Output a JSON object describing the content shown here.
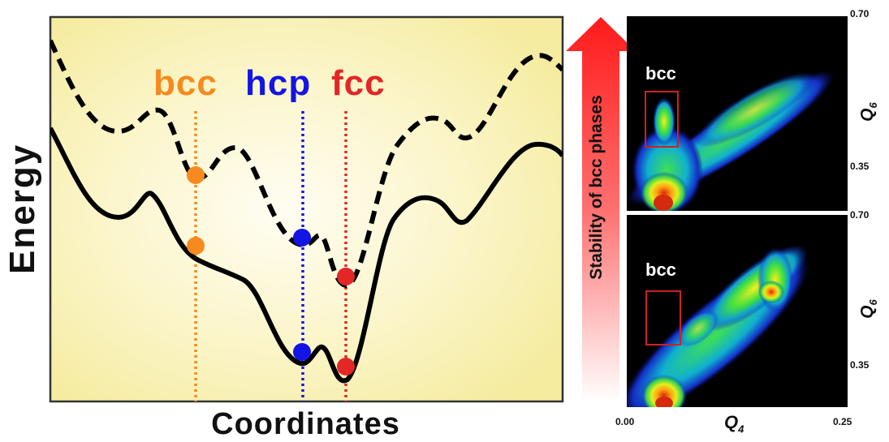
{
  "energy_diagram": {
    "y_label": "Energy",
    "x_label": "Coordinates",
    "phases": [
      {
        "label": "bcc",
        "color": "#f7891e"
      },
      {
        "label": "hcp",
        "color": "#1414e6"
      },
      {
        "label": "fcc",
        "color": "#e32626"
      }
    ],
    "curves": [
      "dashed",
      "solid"
    ]
  },
  "stability_arrow": {
    "label": "Stability of bcc phases",
    "color": "#ff1a1a"
  },
  "scatter_panels": {
    "x_label_main": "Q",
    "x_label_sub": "4",
    "y_label_main": "Q",
    "y_label_sub": "6",
    "x_ticks": [
      "0.00",
      "0.25"
    ],
    "y_ticks": [
      "0.70",
      "0.35"
    ],
    "box_label": "bcc",
    "box_color": "#d02020",
    "panels": [
      "top",
      "bottom"
    ]
  }
}
